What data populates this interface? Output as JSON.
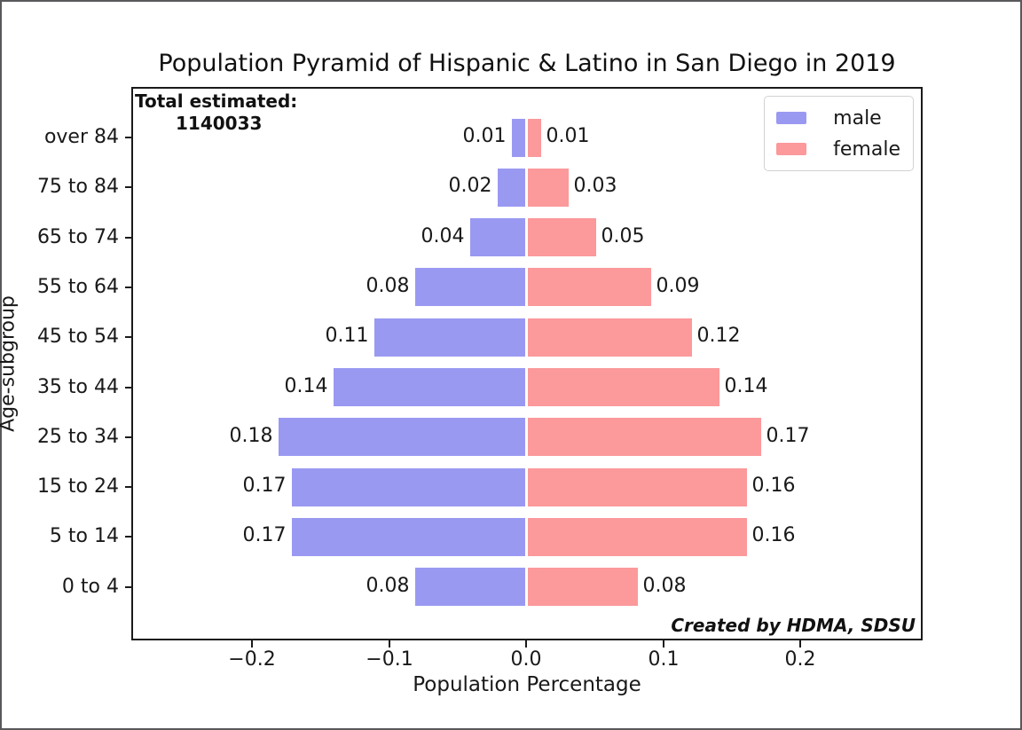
{
  "frame": {
    "background": "#ffffff",
    "border_color": "#59595b"
  },
  "chart_data": {
    "type": "bar",
    "subtype": "population-pyramid",
    "orientation": "horizontal",
    "title": "Population Pyramid of Hispanic & Latino in San Diego in 2019",
    "xlabel": "Population Percentage",
    "ylabel": "Age-subgroup",
    "categories_top_to_bottom": [
      "over 84",
      "75 to 84",
      "65 to 74",
      "55 to 64",
      "45 to 54",
      "35 to 44",
      "25 to 34",
      "15 to 24",
      "5 to 14",
      "0 to 4"
    ],
    "series": [
      {
        "name": "male",
        "side": "left",
        "color": "#9a99f2",
        "values": [
          0.01,
          0.02,
          0.04,
          0.08,
          0.11,
          0.14,
          0.18,
          0.17,
          0.17,
          0.08
        ]
      },
      {
        "name": "female",
        "side": "right",
        "color": "#fb999b",
        "values": [
          0.01,
          0.03,
          0.05,
          0.09,
          0.12,
          0.14,
          0.17,
          0.16,
          0.16,
          0.08
        ]
      }
    ],
    "bar_value_labels_shown": true,
    "x_ticks": [
      {
        "value": -0.2,
        "label": "−0.2"
      },
      {
        "value": -0.1,
        "label": "−0.1"
      },
      {
        "value": 0.0,
        "label": "0.0"
      },
      {
        "value": 0.1,
        "label": "0.1"
      },
      {
        "value": 0.2,
        "label": "0.2"
      }
    ],
    "xlim": [
      -0.287,
      0.289
    ],
    "grid": false,
    "legend": {
      "position": "upper right",
      "entries": [
        {
          "label": "male",
          "color": "#9a99f2"
        },
        {
          "label": "female",
          "color": "#fb999b"
        }
      ]
    },
    "annotation": {
      "title": "Total estimated:",
      "value": "1140033"
    },
    "credit": "Created by HDMA, SDSU",
    "axis_color": "#1a1a1a",
    "text_color": "#191919"
  }
}
